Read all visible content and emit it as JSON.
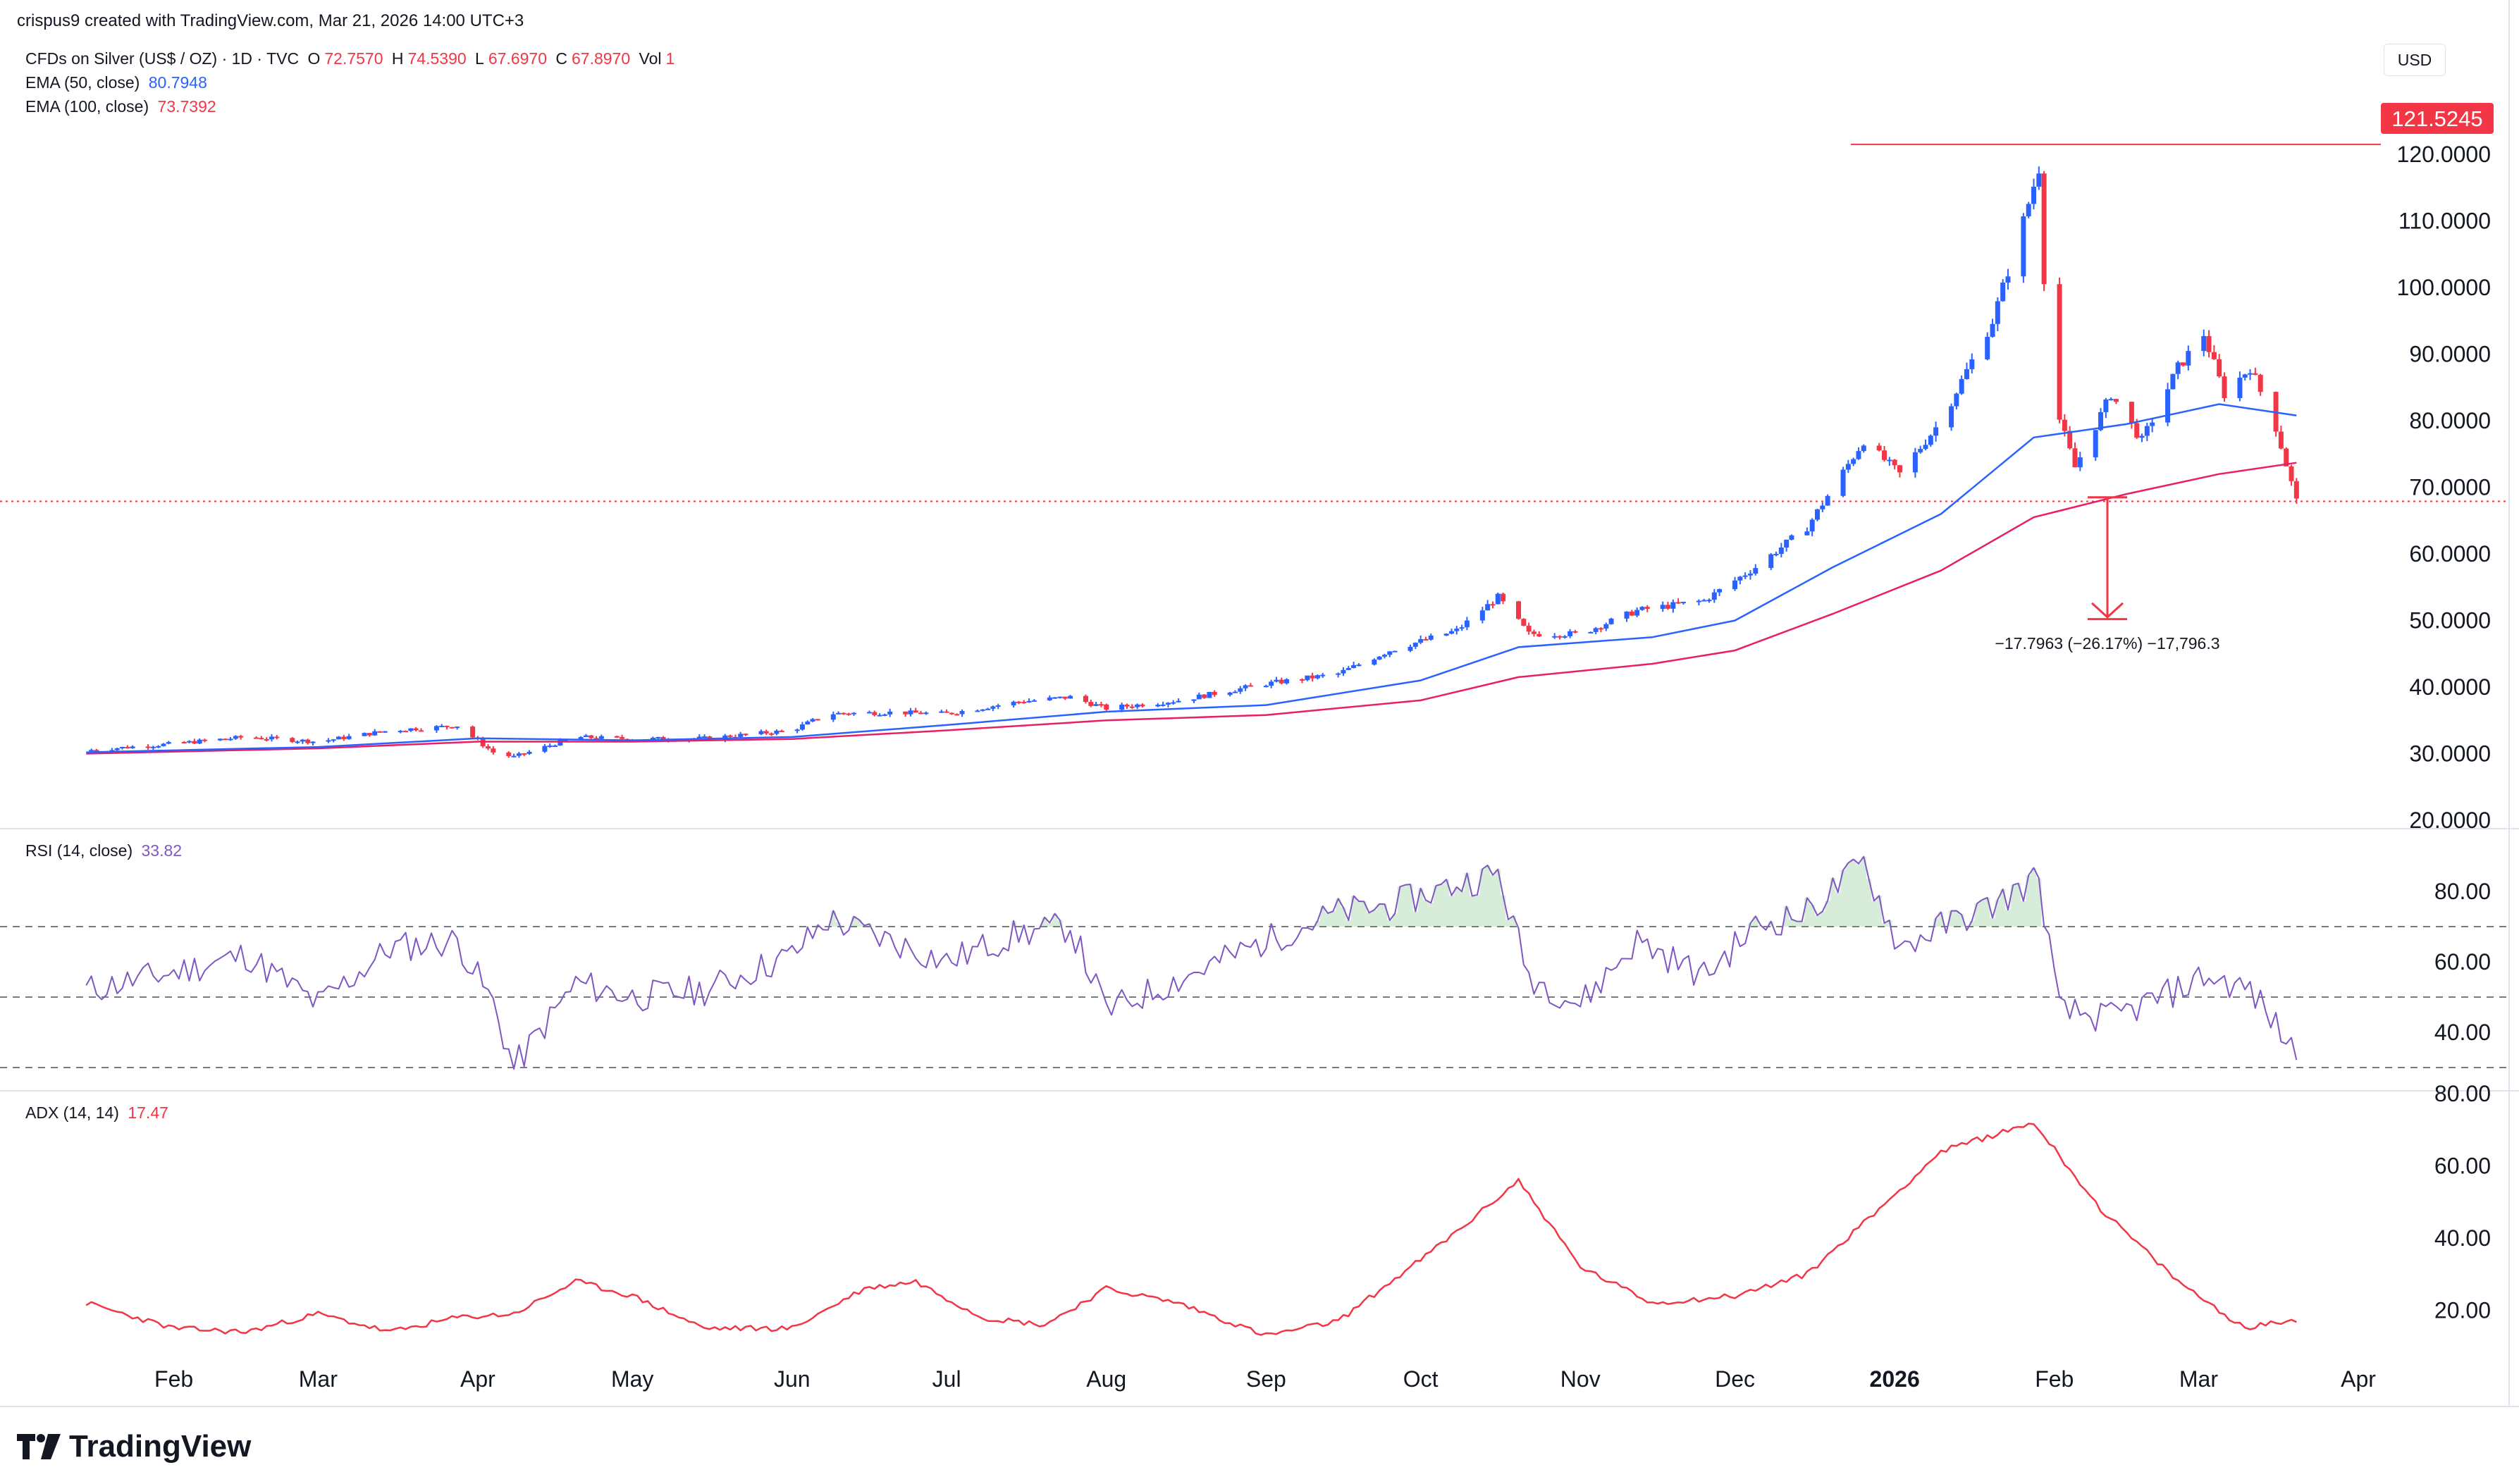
{
  "header": {
    "created_by": "crispus9 created with TradingView.com, Mar 21, 2026 14:00 UTC+3"
  },
  "legend": {
    "symbol": "CFDs on Silver (US$ / OZ) · 1D · TVC",
    "o_label": "O",
    "o_value": "72.7570",
    "h_label": "H",
    "h_value": "74.5390",
    "l_label": "L",
    "l_value": "67.6970",
    "c_label": "C",
    "c_value": "67.8970",
    "vol_label": "Vol",
    "vol_value": "1",
    "ema50_label": "EMA (50, close)",
    "ema50_value": "80.7948",
    "ema100_label": "EMA (100, close)",
    "ema100_value": "73.7392",
    "rsi_label": "RSI (14, close)",
    "rsi_value": "33.82",
    "adx_label": "ADX (14, 14)",
    "adx_value": "17.47"
  },
  "currency_button": "USD",
  "price_marker": "121.5245",
  "measure_label": "−17.7963 (−26.17%) −17,796.3",
  "brand": "TradingView",
  "colors": {
    "up": "#2962ff",
    "down": "#f23645",
    "ema50": "#2962ff",
    "ema100": "#e91e63",
    "rsi": "#7e57c2",
    "adx": "#f23645",
    "grid": "#f0f3fa"
  },
  "chart_data": [
    {
      "type": "candlestick",
      "ylim": [
        20,
        125
      ],
      "yticks": [
        "120.0000",
        "110.0000",
        "100.0000",
        "90.0000",
        "80.0000",
        "70.0000",
        "60.0000",
        "50.0000",
        "40.0000",
        "30.0000",
        "20.0000"
      ],
      "xticks": [
        "Feb",
        "Mar",
        "Apr",
        "May",
        "Jun",
        "Jul",
        "Aug",
        "Sep",
        "Oct",
        "Nov",
        "Dec",
        "2026",
        "Feb",
        "Mar",
        "Apr"
      ],
      "current_price": 67.897,
      "high_marker": 121.5245,
      "close_points": [
        [
          "2025-01-15",
          30.5
        ],
        [
          "2025-02-01",
          31.5
        ],
        [
          "2025-02-15",
          32.5
        ],
        [
          "2025-03-01",
          31.8
        ],
        [
          "2025-03-15",
          33.5
        ],
        [
          "2025-03-28",
          34.2
        ],
        [
          "2025-04-04",
          30.2
        ],
        [
          "2025-04-08",
          29.5
        ],
        [
          "2025-04-20",
          32.5
        ],
        [
          "2025-05-01",
          32.2
        ],
        [
          "2025-05-15",
          32.3
        ],
        [
          "2025-06-01",
          33.5
        ],
        [
          "2025-06-08",
          36.0
        ],
        [
          "2025-06-20",
          36.2
        ],
        [
          "2025-07-01",
          36.0
        ],
        [
          "2025-07-15",
          37.8
        ],
        [
          "2025-07-25",
          38.5
        ],
        [
          "2025-08-01",
          36.8
        ],
        [
          "2025-08-15",
          38.0
        ],
        [
          "2025-09-01",
          40.5
        ],
        [
          "2025-09-15",
          42.0
        ],
        [
          "2025-09-25",
          45.5
        ],
        [
          "2025-10-08",
          48.5
        ],
        [
          "2025-10-16",
          53.5
        ],
        [
          "2025-10-22",
          48.0
        ],
        [
          "2025-11-01",
          48.0
        ],
        [
          "2025-11-12",
          51.5
        ],
        [
          "2025-11-25",
          53.0
        ],
        [
          "2025-12-05",
          58.0
        ],
        [
          "2025-12-15",
          64.0
        ],
        [
          "2025-12-26",
          77.0
        ],
        [
          "2026-01-02",
          72.0
        ],
        [
          "2026-01-10",
          80.0
        ],
        [
          "2026-01-20",
          95.0
        ],
        [
          "2026-01-26",
          110.0
        ],
        [
          "2026-01-29",
          118.0
        ],
        [
          "2026-01-31",
          85.0
        ],
        [
          "2026-02-05",
          73.0
        ],
        [
          "2026-02-12",
          84.0
        ],
        [
          "2026-02-18",
          77.0
        ],
        [
          "2026-02-25",
          88.0
        ],
        [
          "2026-03-02",
          93.0
        ],
        [
          "2026-03-06",
          84.0
        ],
        [
          "2026-03-11",
          88.0
        ],
        [
          "2026-03-16",
          79.0
        ],
        [
          "2026-03-20",
          67.9
        ]
      ],
      "ema50_points": [
        [
          "2025-01-15",
          30.2
        ],
        [
          "2025-03-01",
          31.0
        ],
        [
          "2025-04-01",
          32.3
        ],
        [
          "2025-05-01",
          32.0
        ],
        [
          "2025-06-01",
          32.5
        ],
        [
          "2025-07-01",
          34.3
        ],
        [
          "2025-08-01",
          36.3
        ],
        [
          "2025-09-01",
          37.3
        ],
        [
          "2025-10-01",
          41.0
        ],
        [
          "2025-10-20",
          46.0
        ],
        [
          "2025-11-15",
          47.5
        ],
        [
          "2025-12-01",
          50.0
        ],
        [
          "2025-12-20",
          58.0
        ],
        [
          "2026-01-10",
          66.0
        ],
        [
          "2026-01-28",
          77.5
        ],
        [
          "2026-02-15",
          79.5
        ],
        [
          "2026-03-05",
          82.5
        ],
        [
          "2026-03-20",
          80.8
        ]
      ],
      "ema100_points": [
        [
          "2025-01-15",
          30.0
        ],
        [
          "2025-03-01",
          30.8
        ],
        [
          "2025-04-01",
          31.8
        ],
        [
          "2025-05-01",
          31.8
        ],
        [
          "2025-06-01",
          32.2
        ],
        [
          "2025-07-01",
          33.5
        ],
        [
          "2025-08-01",
          35.0
        ],
        [
          "2025-09-01",
          35.8
        ],
        [
          "2025-10-01",
          38.0
        ],
        [
          "2025-10-20",
          41.5
        ],
        [
          "2025-11-15",
          43.5
        ],
        [
          "2025-12-01",
          45.5
        ],
        [
          "2025-12-20",
          51.0
        ],
        [
          "2026-01-10",
          57.5
        ],
        [
          "2026-01-28",
          65.5
        ],
        [
          "2026-02-15",
          69.0
        ],
        [
          "2026-03-05",
          72.0
        ],
        [
          "2026-03-20",
          73.7
        ]
      ]
    },
    {
      "type": "line",
      "ylim": [
        25,
        95
      ],
      "yticks": [
        "80.00",
        "60.00",
        "40.00"
      ],
      "levels": [
        70,
        50,
        30
      ],
      "points": [
        [
          "2025-01-15",
          52
        ],
        [
          "2025-02-01",
          57
        ],
        [
          "2025-02-15",
          62
        ],
        [
          "2025-03-01",
          48
        ],
        [
          "2025-03-15",
          64
        ],
        [
          "2025-03-28",
          66
        ],
        [
          "2025-04-04",
          48
        ],
        [
          "2025-04-08",
          30
        ],
        [
          "2025-04-20",
          54
        ],
        [
          "2025-05-01",
          50
        ],
        [
          "2025-05-15",
          52
        ],
        [
          "2025-06-01",
          62
        ],
        [
          "2025-06-08",
          72
        ],
        [
          "2025-06-20",
          66
        ],
        [
          "2025-07-01",
          60
        ],
        [
          "2025-07-15",
          68
        ],
        [
          "2025-07-25",
          70
        ],
        [
          "2025-08-01",
          46
        ],
        [
          "2025-08-15",
          55
        ],
        [
          "2025-09-01",
          66
        ],
        [
          "2025-09-15",
          74
        ],
        [
          "2025-09-25",
          76
        ],
        [
          "2025-10-08",
          82
        ],
        [
          "2025-10-16",
          85
        ],
        [
          "2025-10-22",
          56
        ],
        [
          "2025-11-01",
          48
        ],
        [
          "2025-11-12",
          66
        ],
        [
          "2025-11-25",
          56
        ],
        [
          "2025-12-05",
          70
        ],
        [
          "2025-12-15",
          74
        ],
        [
          "2025-12-26",
          88
        ],
        [
          "2026-01-02",
          64
        ],
        [
          "2026-01-10",
          70
        ],
        [
          "2026-01-20",
          76
        ],
        [
          "2026-01-29",
          84
        ],
        [
          "2026-02-02",
          46
        ],
        [
          "2026-02-12",
          44
        ],
        [
          "2026-02-25",
          52
        ],
        [
          "2026-03-02",
          56
        ],
        [
          "2026-03-11",
          52
        ],
        [
          "2026-03-20",
          33.8
        ]
      ]
    },
    {
      "type": "line",
      "ylim": [
        0,
        80
      ],
      "yticks": [
        "80.00",
        "60.00",
        "40.00",
        "20.00"
      ],
      "points": [
        [
          "2025-01-15",
          22
        ],
        [
          "2025-02-01",
          15
        ],
        [
          "2025-02-15",
          14
        ],
        [
          "2025-03-01",
          19
        ],
        [
          "2025-03-15",
          14
        ],
        [
          "2025-03-28",
          18
        ],
        [
          "2025-04-08",
          19
        ],
        [
          "2025-04-20",
          28
        ],
        [
          "2025-05-01",
          24
        ],
        [
          "2025-05-15",
          15
        ],
        [
          "2025-06-01",
          15
        ],
        [
          "2025-06-15",
          26
        ],
        [
          "2025-06-25",
          28
        ],
        [
          "2025-07-08",
          18
        ],
        [
          "2025-07-20",
          16
        ],
        [
          "2025-08-01",
          26
        ],
        [
          "2025-08-15",
          22
        ],
        [
          "2025-09-01",
          13
        ],
        [
          "2025-09-15",
          17
        ],
        [
          "2025-10-01",
          34
        ],
        [
          "2025-10-10",
          44
        ],
        [
          "2025-10-20",
          56
        ],
        [
          "2025-11-01",
          32
        ],
        [
          "2025-11-15",
          22
        ],
        [
          "2025-12-01",
          24
        ],
        [
          "2025-12-15",
          30
        ],
        [
          "2026-01-01",
          52
        ],
        [
          "2026-01-10",
          64
        ],
        [
          "2026-01-28",
          72
        ],
        [
          "2026-02-10",
          48
        ],
        [
          "2026-02-25",
          28
        ],
        [
          "2026-03-10",
          15
        ],
        [
          "2026-03-20",
          17.5
        ]
      ]
    }
  ]
}
